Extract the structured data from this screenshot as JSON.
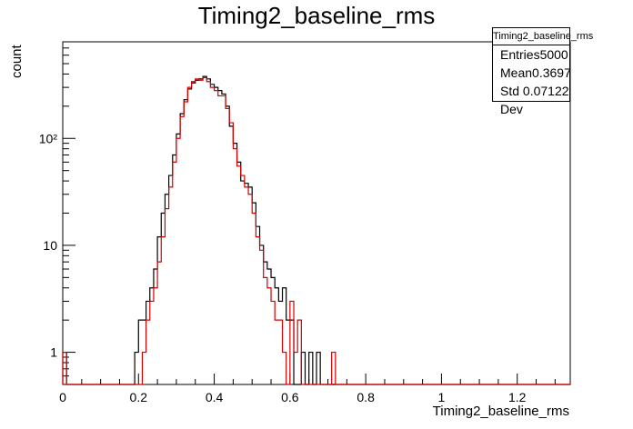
{
  "chart_data": {
    "type": "line",
    "title": "Timing2_baseline_rms",
    "xlabel": "Timing2_baseline_rms",
    "ylabel": "count",
    "xlim": [
      0,
      1.34
    ],
    "ylim": [
      0.5,
      800
    ],
    "yscale": "log",
    "grid": false,
    "xticks": [
      "0",
      "0.2",
      "0.4",
      "0.6",
      "0.8",
      "1",
      "1.2"
    ],
    "yticks": [
      {
        "label": "1",
        "value": 1
      },
      {
        "label": "10",
        "value": 10
      },
      {
        "label": "10²",
        "value": 100
      }
    ],
    "stats": {
      "title": "Timing2_baseline_rms",
      "rows": [
        {
          "label": "Entries",
          "value": "5000"
        },
        {
          "label": "Mean",
          "value": "0.3697"
        },
        {
          "label": "Std Dev",
          "value": "0.07122"
        }
      ]
    },
    "bin_width": 0.01,
    "series": [
      {
        "color": "#000000",
        "x": [
          0.0,
          0.19,
          0.2,
          0.21,
          0.22,
          0.23,
          0.24,
          0.25,
          0.26,
          0.27,
          0.28,
          0.29,
          0.3,
          0.31,
          0.32,
          0.33,
          0.34,
          0.35,
          0.36,
          0.37,
          0.38,
          0.39,
          0.4,
          0.41,
          0.42,
          0.43,
          0.44,
          0.45,
          0.46,
          0.47,
          0.48,
          0.49,
          0.5,
          0.51,
          0.52,
          0.53,
          0.54,
          0.55,
          0.56,
          0.57,
          0.58,
          0.59,
          0.6,
          0.63,
          0.65,
          0.67
        ],
        "counts": [
          1,
          1,
          2,
          2,
          3,
          4,
          6,
          12,
          20,
          30,
          45,
          70,
          110,
          170,
          230,
          290,
          330,
          350,
          360,
          380,
          360,
          320,
          300,
          280,
          260,
          200,
          130,
          90,
          60,
          40,
          38,
          35,
          25,
          15,
          10,
          7,
          6,
          5,
          4,
          3,
          4,
          2,
          2,
          1,
          1,
          1
        ]
      },
      {
        "color": "#d40000",
        "x": [
          0.0,
          0.21,
          0.22,
          0.23,
          0.24,
          0.25,
          0.26,
          0.27,
          0.28,
          0.29,
          0.3,
          0.31,
          0.32,
          0.33,
          0.34,
          0.35,
          0.36,
          0.37,
          0.38,
          0.39,
          0.4,
          0.41,
          0.42,
          0.43,
          0.44,
          0.45,
          0.46,
          0.47,
          0.48,
          0.49,
          0.5,
          0.51,
          0.52,
          0.53,
          0.54,
          0.55,
          0.56,
          0.57,
          0.58,
          0.6,
          0.61,
          0.62,
          0.71
        ],
        "counts": [
          1,
          1,
          2,
          3,
          4,
          7,
          12,
          22,
          35,
          60,
          100,
          160,
          220,
          300,
          340,
          360,
          350,
          370,
          340,
          300,
          280,
          250,
          250,
          190,
          140,
          80,
          55,
          45,
          35,
          30,
          20,
          12,
          9,
          5,
          4,
          3,
          2,
          2,
          1,
          3,
          1,
          2,
          1
        ]
      }
    ]
  }
}
